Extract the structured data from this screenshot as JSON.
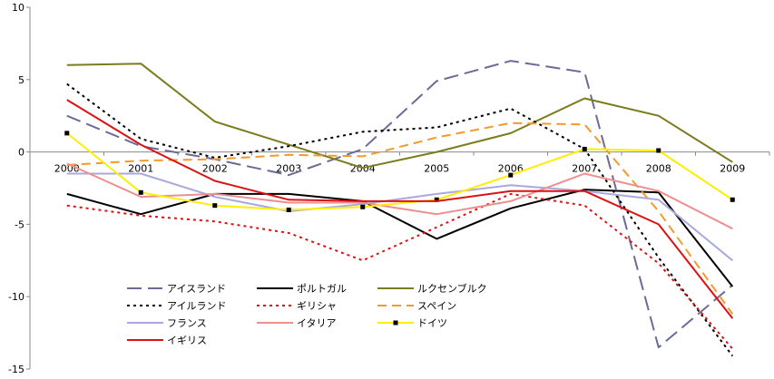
{
  "chart_data": {
    "type": "line",
    "title": "",
    "xlabel": "",
    "ylabel": "",
    "categories": [
      "2000",
      "2001",
      "2002",
      "2003",
      "2004",
      "2005",
      "2006",
      "2007",
      "2008",
      "2009"
    ],
    "ylim": [
      -15,
      10
    ],
    "yticks": [
      10,
      5,
      0,
      -5,
      -10,
      -15
    ],
    "grid": false,
    "legend_position": "bottom-left",
    "series": [
      {
        "name": "アイスランド",
        "color": "#6b6b99",
        "style": "longdash",
        "marker": "none",
        "values": [
          2.5,
          0.4,
          -0.5,
          -1.6,
          0.2,
          4.9,
          6.3,
          5.5,
          -13.5,
          -9.2
        ]
      },
      {
        "name": "ポルトガル",
        "color": "#000000",
        "style": "solid",
        "marker": "none",
        "values": [
          -2.9,
          -4.3,
          -2.9,
          -2.9,
          -3.4,
          -6.0,
          -3.9,
          -2.6,
          -2.8,
          -9.3
        ]
      },
      {
        "name": "ルクセンブルク",
        "color": "#7b7b1f",
        "style": "solid",
        "marker": "none",
        "values": [
          6.0,
          6.1,
          2.1,
          0.5,
          -1.1,
          0.0,
          1.3,
          3.7,
          2.5,
          -0.7
        ]
      },
      {
        "name": "アイルランド",
        "color": "#000000",
        "style": "dotted",
        "marker": "none",
        "values": [
          4.7,
          0.9,
          -0.4,
          0.4,
          1.4,
          1.7,
          3.0,
          0.2,
          -7.3,
          -14.1
        ]
      },
      {
        "name": "ギリシャ",
        "color": "#dd1111",
        "style": "dotted",
        "marker": "none",
        "values": [
          -3.7,
          -4.4,
          -4.8,
          -5.6,
          -7.5,
          -5.2,
          -2.9,
          -3.7,
          -7.7,
          -13.6
        ]
      },
      {
        "name": "スペイン",
        "color": "#f29a2e",
        "style": "dash",
        "marker": "none",
        "values": [
          -0.9,
          -0.6,
          -0.5,
          -0.2,
          -0.3,
          1.0,
          2.0,
          1.9,
          -4.1,
          -11.2
        ]
      },
      {
        "name": "フランス",
        "color": "#a9a9e0",
        "style": "solid",
        "marker": "none",
        "values": [
          -1.5,
          -1.5,
          -3.1,
          -4.1,
          -3.6,
          -2.9,
          -2.3,
          -2.7,
          -3.3,
          -7.5
        ]
      },
      {
        "name": "イタリア",
        "color": "#ee8f8f",
        "style": "solid",
        "marker": "none",
        "values": [
          -0.8,
          -3.1,
          -2.9,
          -3.5,
          -3.5,
          -4.3,
          -3.4,
          -1.5,
          -2.7,
          -5.3
        ]
      },
      {
        "name": "ドイツ",
        "color": "#ffee00",
        "style": "solid",
        "marker": "square",
        "values": [
          1.3,
          -2.8,
          -3.7,
          -4.0,
          -3.8,
          -3.3,
          -1.6,
          0.2,
          0.1,
          -3.3
        ]
      },
      {
        "name": "イギリス",
        "color": "#dd1111",
        "style": "solid",
        "marker": "none",
        "values": [
          3.6,
          0.5,
          -2.0,
          -3.3,
          -3.4,
          -3.4,
          -2.7,
          -2.7,
          -5.0,
          -11.5
        ]
      }
    ]
  }
}
